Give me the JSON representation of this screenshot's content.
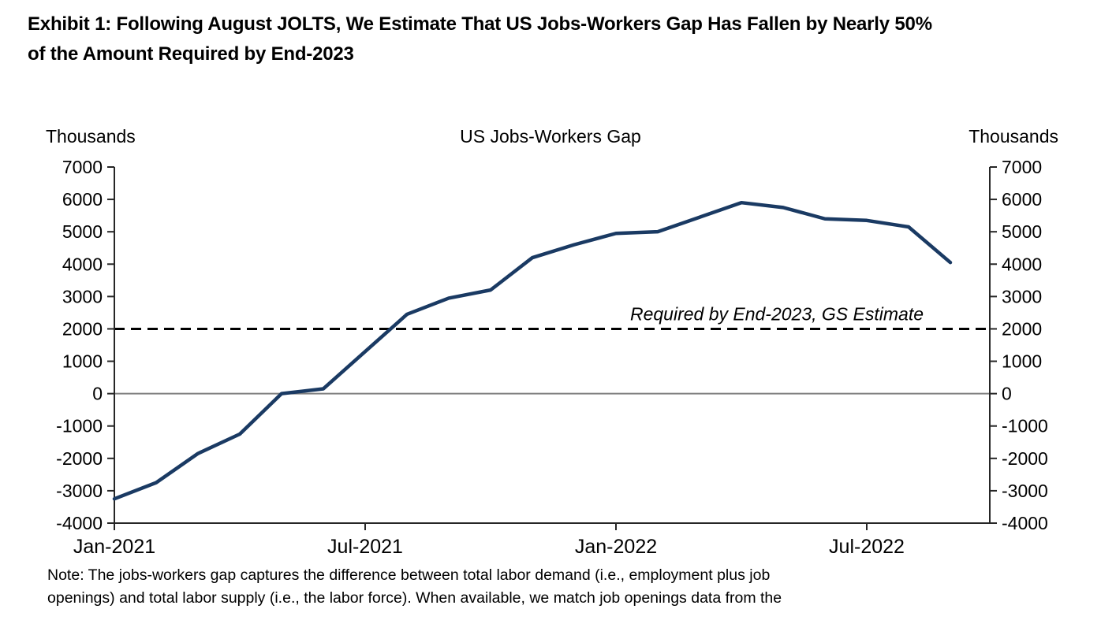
{
  "page": {
    "exhibit_title_line1": "Exhibit 1: Following August JOLTS, We Estimate That US Jobs-Workers Gap Has Fallen by Nearly 50%",
    "exhibit_title_line2": "of the Amount Required by End-2023",
    "note_line1": "Note: The jobs-workers gap captures the difference between total labor demand (i.e., employment plus job",
    "note_line2": "openings) and total labor supply (i.e., the labor force). When available, we match job openings data from the"
  },
  "chart_data": {
    "type": "line",
    "title": "US Jobs-Workers Gap",
    "left_axis_title": "Thousands",
    "right_axis_title": "Thousands",
    "x": [
      "Jan-2021",
      "Feb-2021",
      "Mar-2021",
      "Apr-2021",
      "May-2021",
      "Jun-2021",
      "Jul-2021",
      "Aug-2021",
      "Sep-2021",
      "Oct-2021",
      "Nov-2021",
      "Dec-2021",
      "Jan-2022",
      "Feb-2022",
      "Mar-2022",
      "Apr-2022",
      "May-2022",
      "Jun-2022",
      "Jul-2022",
      "Aug-2022",
      "Sep-2022"
    ],
    "series": [
      {
        "name": "US Jobs-Workers Gap",
        "color": "#1a3a63",
        "values": [
          -3250,
          -2750,
          -1850,
          -1250,
          0,
          150,
          1300,
          2450,
          2950,
          3200,
          4200,
          4600,
          4950,
          5000,
          5450,
          5900,
          5750,
          5400,
          5350,
          5150,
          4050
        ]
      }
    ],
    "reference_line": {
      "value": 2000,
      "label": "Required by End-2023, GS Estimate",
      "style": "dashed",
      "color": "#000000"
    },
    "zero_line": {
      "value": 0,
      "color": "#7f7f7f"
    },
    "axis_color": "#262626",
    "ylim": [
      -4000,
      7000
    ],
    "ytick_step": 1000,
    "xtick_labels": [
      "Jan-2021",
      "Jul-2021",
      "Jan-2022",
      "Jul-2022"
    ],
    "xtick_indices": [
      0,
      6,
      12,
      18
    ],
    "grid": false,
    "legend": "none"
  }
}
